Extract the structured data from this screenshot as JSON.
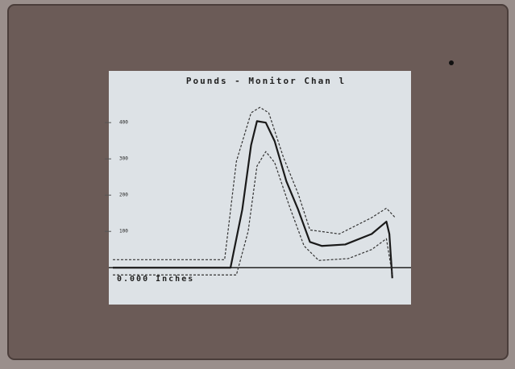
{
  "chart_data": {
    "type": "line",
    "title": "Pounds  -  Monitor Chan l",
    "x_label": "0.000 Inches",
    "xlim": [
      0,
      100
    ],
    "ylim": [
      -95,
      527
    ],
    "yticks": [
      100,
      200,
      300,
      400
    ],
    "series": [
      {
        "color": "#1a1a1a",
        "dash": false,
        "x": [
          0,
          40,
          44,
          47,
          49,
          52,
          55,
          59,
          63,
          67,
          71,
          79,
          88,
          93,
          94,
          95
        ],
        "values": [
          0,
          0,
          160,
          338,
          404,
          400,
          349,
          238,
          160,
          71,
          60,
          64,
          93,
          127,
          93,
          -29
        ]
      },
      {
        "color": "#333333",
        "dash": true,
        "x": [
          0,
          38,
          42,
          47,
          50,
          53,
          58,
          63,
          67,
          77,
          88,
          93,
          96
        ],
        "values": [
          22,
          22,
          293,
          427,
          442,
          427,
          304,
          204,
          104,
          93,
          138,
          164,
          138
        ]
      },
      {
        "color": "#333333",
        "dash": true,
        "x": [
          0,
          42,
          46,
          49,
          52,
          55,
          60,
          65,
          70,
          80,
          88,
          93,
          95
        ],
        "values": [
          -20,
          -20,
          100,
          280,
          320,
          290,
          170,
          60,
          20,
          25,
          50,
          80,
          -20
        ]
      }
    ]
  }
}
